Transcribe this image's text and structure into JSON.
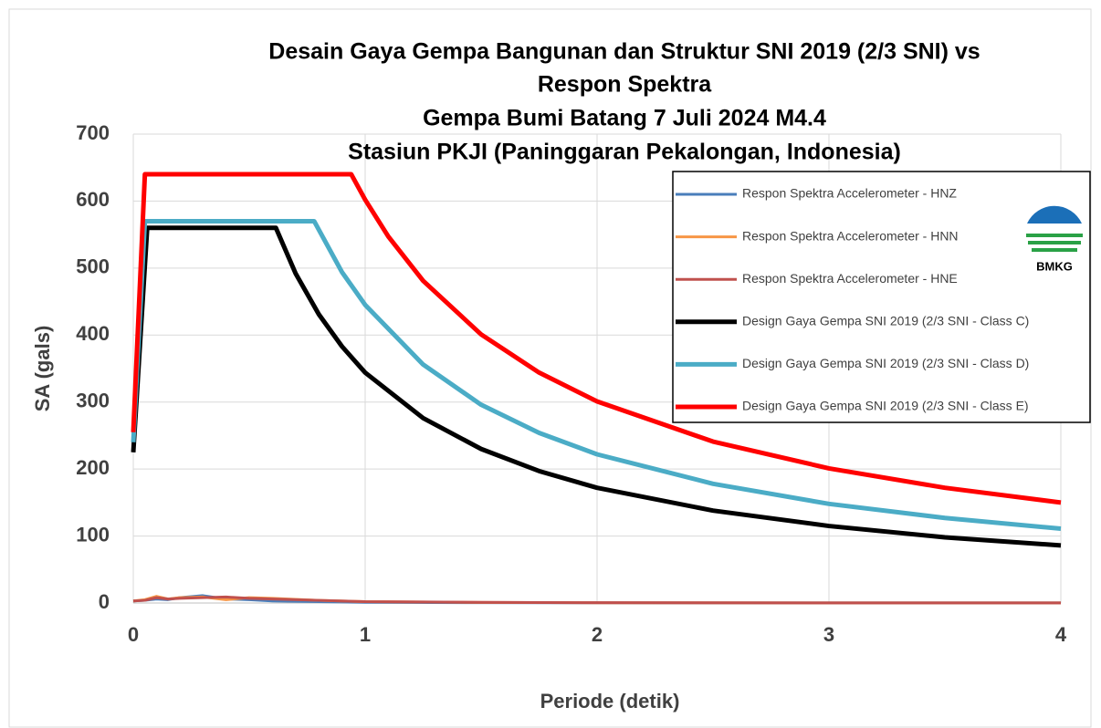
{
  "chart_data": {
    "type": "line",
    "title": [
      "Desain Gaya Gempa Bangunan dan Struktur SNI 2019 (2/3 SNI) vs",
      "Respon Spektra",
      "Gempa Bumi Batang 7 Juli 2024 M4.4",
      "Stasiun PKJI (Paninggaran Pekalongan, Indonesia)"
    ],
    "x_label": "Periode (detik)",
    "y_label": "SA (gals)",
    "logo_text": "BMKG",
    "xlim": [
      0,
      4
    ],
    "xticks": [
      0,
      1,
      2,
      3,
      4
    ],
    "ylim": [
      0,
      700
    ],
    "yticks": [
      0,
      100,
      200,
      300,
      400,
      500,
      600,
      700
    ],
    "grid": true,
    "legend": "upper right",
    "series": [
      {
        "name": "Respon Spektra Accelerometer - HNZ",
        "color": "#4a7ebb",
        "width": 3,
        "x": [
          0,
          0.05,
          0.1,
          0.15,
          0.2,
          0.3,
          0.4,
          0.5,
          0.6,
          0.8,
          1,
          1.5,
          2,
          3,
          4
        ],
        "values": [
          3,
          4,
          6,
          5,
          8,
          11,
          6,
          5,
          3,
          2,
          1,
          0.5,
          0.3,
          0.1,
          0.1
        ]
      },
      {
        "name": "Respon Spektra Accelerometer - HNN",
        "color": "#f79646",
        "width": 3,
        "x": [
          0,
          0.05,
          0.1,
          0.15,
          0.2,
          0.3,
          0.4,
          0.5,
          0.6,
          0.8,
          1,
          1.5,
          2,
          3,
          4
        ],
        "values": [
          3,
          5,
          10,
          6,
          8,
          9,
          5,
          8,
          7,
          4,
          2,
          0.8,
          0.4,
          0.2,
          0.1
        ]
      },
      {
        "name": "Respon Spektra Accelerometer - HNE",
        "color": "#c0504d",
        "width": 3,
        "x": [
          0,
          0.05,
          0.1,
          0.15,
          0.2,
          0.3,
          0.4,
          0.5,
          0.6,
          0.8,
          1,
          1.5,
          2,
          3,
          4
        ],
        "values": [
          3,
          4,
          8,
          6,
          7,
          8,
          9,
          7,
          6,
          4,
          2,
          1,
          0.5,
          0.2,
          0.1
        ]
      },
      {
        "name": "Design Gaya Gempa SNI 2019 (2/3 SNI - Class C)",
        "color": "#000000",
        "width": 5,
        "x": [
          0,
          0.06,
          0.615,
          0.7,
          0.8,
          0.9,
          1,
          1.25,
          1.5,
          1.75,
          2,
          2.5,
          3,
          3.5,
          4
        ],
        "values": [
          225,
          560,
          560,
          492,
          431,
          383,
          344,
          276,
          230,
          197,
          172,
          138,
          115,
          98,
          86
        ]
      },
      {
        "name": "Design Gaya Gempa SNI 2019 (2/3 SNI - Class D)",
        "color": "#4bacc6",
        "width": 5,
        "x": [
          0,
          0.05,
          0.78,
          0.9,
          1,
          1.25,
          1.5,
          1.75,
          2,
          2.5,
          3,
          3.5,
          4
        ],
        "values": [
          240,
          570,
          570,
          494,
          445,
          356,
          296,
          254,
          222,
          178,
          148,
          127,
          111
        ]
      },
      {
        "name": "Design Gaya Gempa SNI 2019 (2/3 SNI - Class E)",
        "color": "#ff0000",
        "width": 5,
        "x": [
          0,
          0.05,
          0.94,
          1,
          1.1,
          1.25,
          1.5,
          1.75,
          2,
          2.5,
          3,
          3.5,
          4
        ],
        "values": [
          255,
          640,
          640,
          602,
          547,
          481,
          401,
          344,
          301,
          241,
          201,
          172,
          150
        ]
      }
    ]
  }
}
